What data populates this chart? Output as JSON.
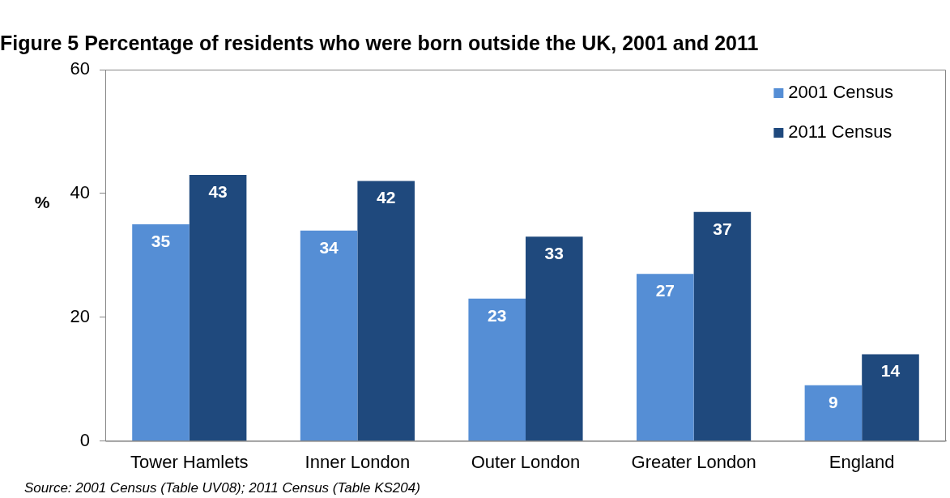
{
  "chart_data": {
    "type": "bar",
    "title": "Figure 5 Percentage of residents who were born outside the UK, 2001 and 2011",
    "ylabel": "%",
    "categories": [
      "Tower Hamlets",
      "Inner London",
      "Outer London",
      "Greater London",
      "England"
    ],
    "series": [
      {
        "name": "2001 Census",
        "color": "#558ed5",
        "values": [
          35,
          34,
          23,
          27,
          9
        ]
      },
      {
        "name": "2011 Census",
        "color": "#1f497d",
        "values": [
          43,
          42,
          33,
          37,
          14
        ]
      }
    ],
    "ylim": [
      0,
      60
    ],
    "yticks": [
      0,
      20,
      40,
      60
    ],
    "grid": false,
    "legend": "top right",
    "data_labels": true,
    "annotations": [
      "Source: 2001 Census (Table UV08); 2011 Census (Table KS204)"
    ]
  }
}
